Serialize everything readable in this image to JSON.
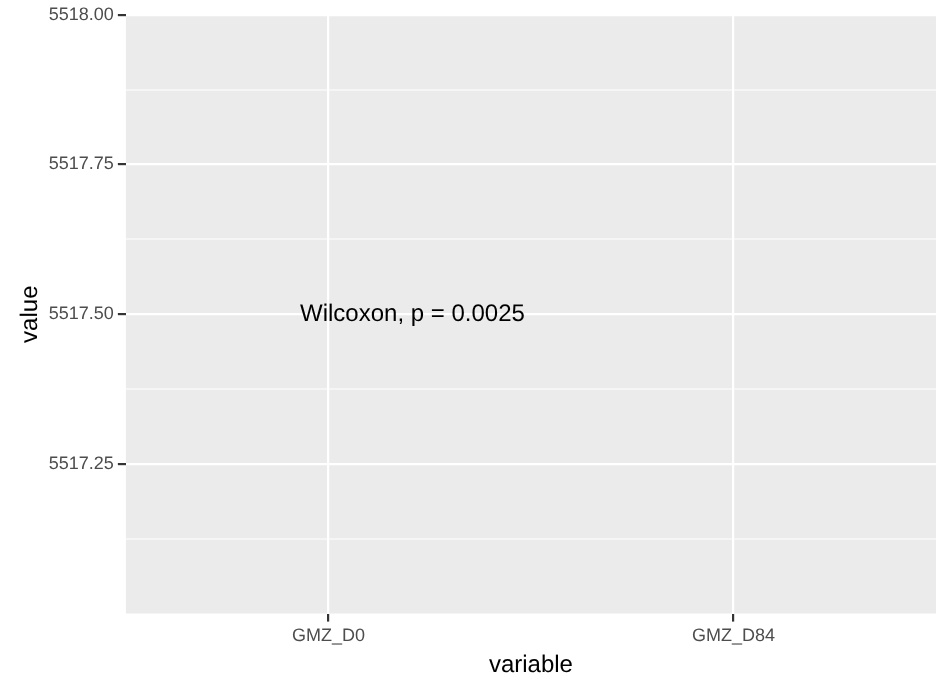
{
  "chart_data": {
    "type": "scatter",
    "xlabel": "variable",
    "ylabel": "value",
    "categories": [
      "GMZ_D0",
      "GMZ_D84"
    ],
    "values": [
      null,
      null
    ],
    "ylim": [
      5517,
      5518
    ],
    "yticks": [
      {
        "value": 5517.125,
        "label": null
      },
      {
        "value": 5517.25,
        "label": "5517.25"
      },
      {
        "value": 5517.375,
        "label": null
      },
      {
        "value": 5517.5,
        "label": "5517.50"
      },
      {
        "value": 5517.625,
        "label": null
      },
      {
        "value": 5517.75,
        "label": "5517.75"
      },
      {
        "value": 5517.875,
        "label": null
      },
      {
        "value": 5518,
        "label": "5518.00"
      }
    ],
    "grid": true,
    "annotations": [
      "Wilcoxon, p = 0.0025"
    ]
  }
}
